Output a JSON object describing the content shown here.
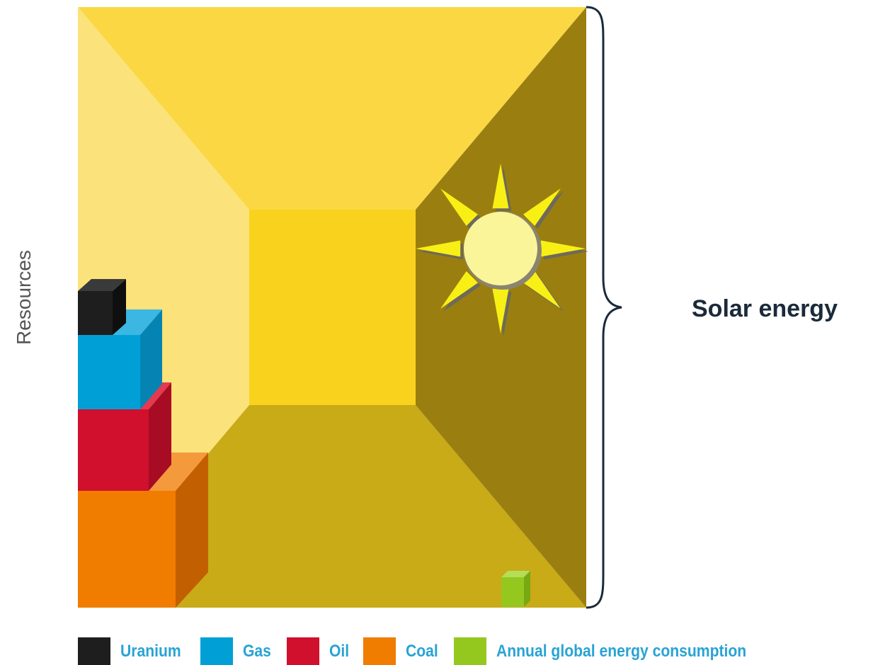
{
  "axis": {
    "y_label": "Resources"
  },
  "brace": {
    "label": "Solar energy"
  },
  "colors": {
    "uranium": "#1e1e1e",
    "gas": "#00a0d6",
    "oil": "#d0102c",
    "coal": "#f07c00",
    "annual_consumption": "#95c81e",
    "room_top": "#fbd843",
    "room_left": "#fbe27a",
    "room_back": "#f9d21e",
    "room_floor": "#c9aa17",
    "room_right": "#9a7f10",
    "sun_rays": "#f8f014",
    "sun_disc": "#fbf59a",
    "legend_text": "#29a3d4"
  },
  "legend": [
    {
      "label": "Uranium",
      "color": "#1e1e1e"
    },
    {
      "label": "Gas",
      "color": "#00a0d6"
    },
    {
      "label": "Oil",
      "color": "#d0102c"
    },
    {
      "label": "Coal",
      "color": "#f07c00"
    },
    {
      "label": "Annual global energy consumption",
      "color": "#95c81e"
    }
  ],
  "icons": {
    "sun": "sun-icon",
    "brace": "right-curly-brace"
  }
}
